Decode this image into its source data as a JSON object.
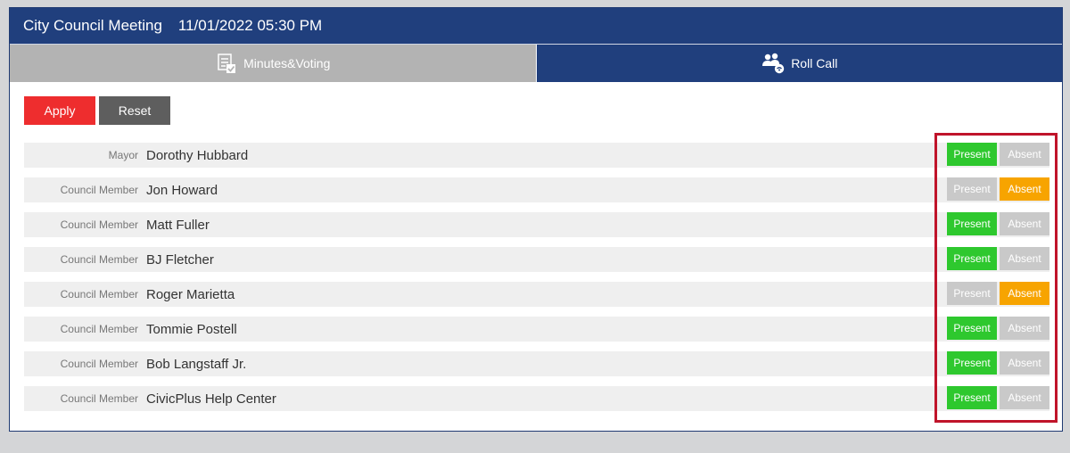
{
  "header": {
    "title": "City Council Meeting",
    "datetime": "11/01/2022 05:30 PM"
  },
  "tabs": [
    {
      "label": "Minutes&Voting",
      "icon": "checklist-icon",
      "active": false
    },
    {
      "label": "Roll Call",
      "icon": "people-icon",
      "active": true
    }
  ],
  "actions": {
    "apply_label": "Apply",
    "reset_label": "Reset"
  },
  "colors": {
    "header": "#203f7d",
    "apply": "#ee2d2e",
    "reset": "#5e5e5e",
    "present": "#2ec82e",
    "absent_active": "#f7a400",
    "inactive": "#c9c9c9",
    "highlight": "#c0142a"
  },
  "status_labels": {
    "present": "Present",
    "absent": "Absent"
  },
  "members": [
    {
      "role": "Mayor",
      "name": "Dorothy Hubbard",
      "status": "present"
    },
    {
      "role": "Council Member",
      "name": "Jon Howard",
      "status": "absent"
    },
    {
      "role": "Council Member",
      "name": "Matt Fuller",
      "status": "present"
    },
    {
      "role": "Council Member",
      "name": "BJ Fletcher",
      "status": "present"
    },
    {
      "role": "Council Member",
      "name": "Roger Marietta",
      "status": "absent"
    },
    {
      "role": "Council Member",
      "name": "Tommie Postell",
      "status": "present"
    },
    {
      "role": "Council Member",
      "name": "Bob Langstaff Jr.",
      "status": "present"
    },
    {
      "role": "Council Member",
      "name": "CivicPlus Help Center",
      "status": "present"
    }
  ]
}
